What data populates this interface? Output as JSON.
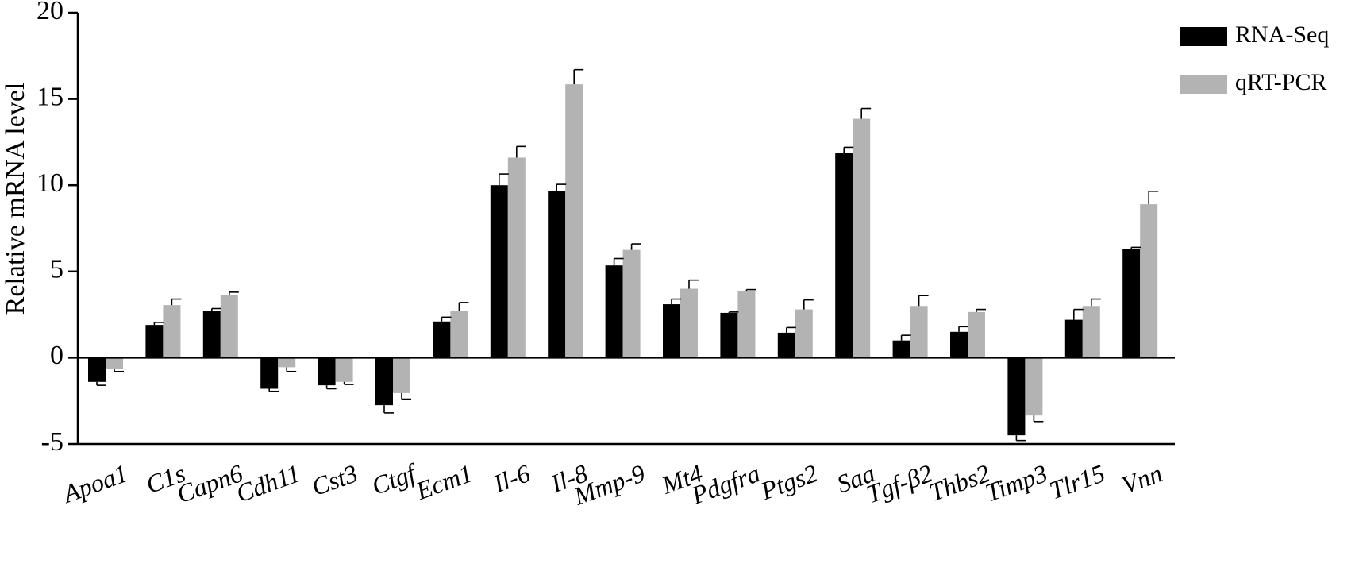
{
  "chart_data": {
    "type": "bar",
    "title": "",
    "xlabel": "",
    "ylabel": "Relative mRNA level",
    "ylim": [
      -5,
      20
    ],
    "yticks": [
      -5,
      0,
      5,
      10,
      15,
      20
    ],
    "grid": false,
    "legend_position": "top-right",
    "categories": [
      "Apoa1",
      "C1s",
      "Capn6",
      "Cdh11",
      "Cst3",
      "Ctgf",
      "Ecm1",
      "Il-6",
      "Il-8",
      "Mmp-9",
      "Mt4",
      "Pdgfra",
      "Ptgs2",
      "Saa",
      "Tgf-β2",
      "Thbs2",
      "Timp3",
      "Tlr15",
      "Vnn"
    ],
    "series": [
      {
        "name": "RNA-Seq",
        "color": "#000000",
        "values": [
          -1.4,
          1.9,
          2.7,
          -1.8,
          -1.6,
          -2.75,
          2.1,
          10.0,
          9.65,
          5.35,
          3.1,
          2.6,
          1.45,
          11.85,
          1.0,
          1.5,
          -4.5,
          2.2,
          6.3
        ],
        "errors": [
          0.2,
          0.15,
          0.15,
          0.15,
          0.2,
          0.45,
          0.25,
          0.65,
          0.4,
          0.4,
          0.3,
          0.05,
          0.3,
          0.35,
          0.3,
          0.3,
          0.3,
          0.6,
          0.1
        ]
      },
      {
        "name": "qRT-PCR",
        "color": "#b3b3b3",
        "values": [
          -0.65,
          3.05,
          3.65,
          -0.55,
          -1.4,
          -2.05,
          2.7,
          11.6,
          15.85,
          6.25,
          4.0,
          3.85,
          2.8,
          13.85,
          3.0,
          2.65,
          -3.35,
          3.0,
          8.9
        ],
        "errors": [
          0.15,
          0.35,
          0.15,
          0.25,
          0.15,
          0.35,
          0.5,
          0.65,
          0.85,
          0.35,
          0.5,
          0.1,
          0.55,
          0.6,
          0.6,
          0.15,
          0.35,
          0.4,
          0.75
        ]
      }
    ]
  }
}
